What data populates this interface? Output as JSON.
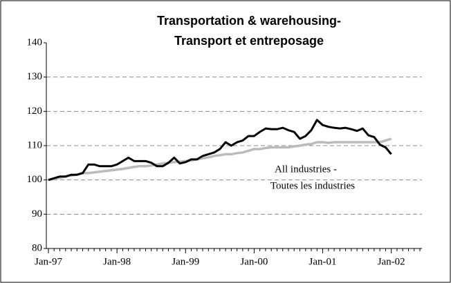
{
  "chart_data": {
    "type": "line",
    "title": [
      "Transportation & warehousing-",
      "Transport et entreposage"
    ],
    "annotations": [
      "All industries -",
      "Toutes les industries"
    ],
    "categories": [
      "Jan-97",
      null,
      null,
      null,
      null,
      null,
      null,
      null,
      null,
      null,
      null,
      null,
      "Jan-98",
      null,
      null,
      null,
      null,
      null,
      null,
      null,
      null,
      null,
      null,
      null,
      "Jan-99",
      null,
      null,
      null,
      null,
      null,
      null,
      null,
      null,
      null,
      null,
      null,
      "Jan-00",
      null,
      null,
      null,
      null,
      null,
      null,
      null,
      null,
      null,
      null,
      null,
      "Jan-01",
      null,
      null,
      null,
      null,
      null,
      null,
      null,
      null,
      null,
      null,
      null,
      "Jan-02",
      null,
      null,
      null,
      null,
      null
    ],
    "series": [
      {
        "color": "#bbbbbb",
        "values": [
          100,
          100.3,
          100.6,
          101,
          101.3,
          101.6,
          102,
          102,
          102.2,
          102.4,
          102.6,
          102.8,
          103,
          103.2,
          103.5,
          103.8,
          104,
          104,
          104.2,
          104.5,
          104.8,
          105,
          105.2,
          105.3,
          105.5,
          105.7,
          106,
          106.3,
          106.6,
          107,
          107.2,
          107.5,
          107.5,
          107.8,
          108,
          108.5,
          109,
          109,
          109.3,
          109.5,
          109.5,
          109.5,
          109.5,
          109.8,
          110,
          110.3,
          110.5,
          111,
          111,
          110.8,
          111,
          111,
          111,
          111,
          111,
          111,
          111,
          111,
          111,
          111.5,
          112,
          null,
          null,
          null,
          null,
          null
        ]
      },
      {
        "color": "#000000",
        "values": [
          100,
          100.5,
          101,
          101,
          101.5,
          101.5,
          102,
          104.5,
          104.5,
          104,
          104,
          104,
          104.5,
          105.5,
          106.5,
          105.5,
          105.5,
          105.5,
          105,
          104,
          104,
          105,
          106.5,
          104.8,
          105.2,
          106,
          106,
          107,
          107.5,
          108,
          109,
          111,
          110,
          111,
          111.5,
          112.8,
          112.8,
          114,
          115,
          114.8,
          114.8,
          115.2,
          114.5,
          114,
          112,
          112.8,
          114.5,
          117.5,
          116,
          115.5,
          115.2,
          115,
          115.2,
          114.8,
          114.3,
          115,
          113,
          112.5,
          110.3,
          109.5,
          107.5,
          null,
          null,
          null,
          null,
          null
        ]
      }
    ],
    "ylim": [
      80,
      140
    ],
    "yticks": [
      80,
      90,
      100,
      110,
      120,
      130,
      140
    ],
    "grid": true
  }
}
